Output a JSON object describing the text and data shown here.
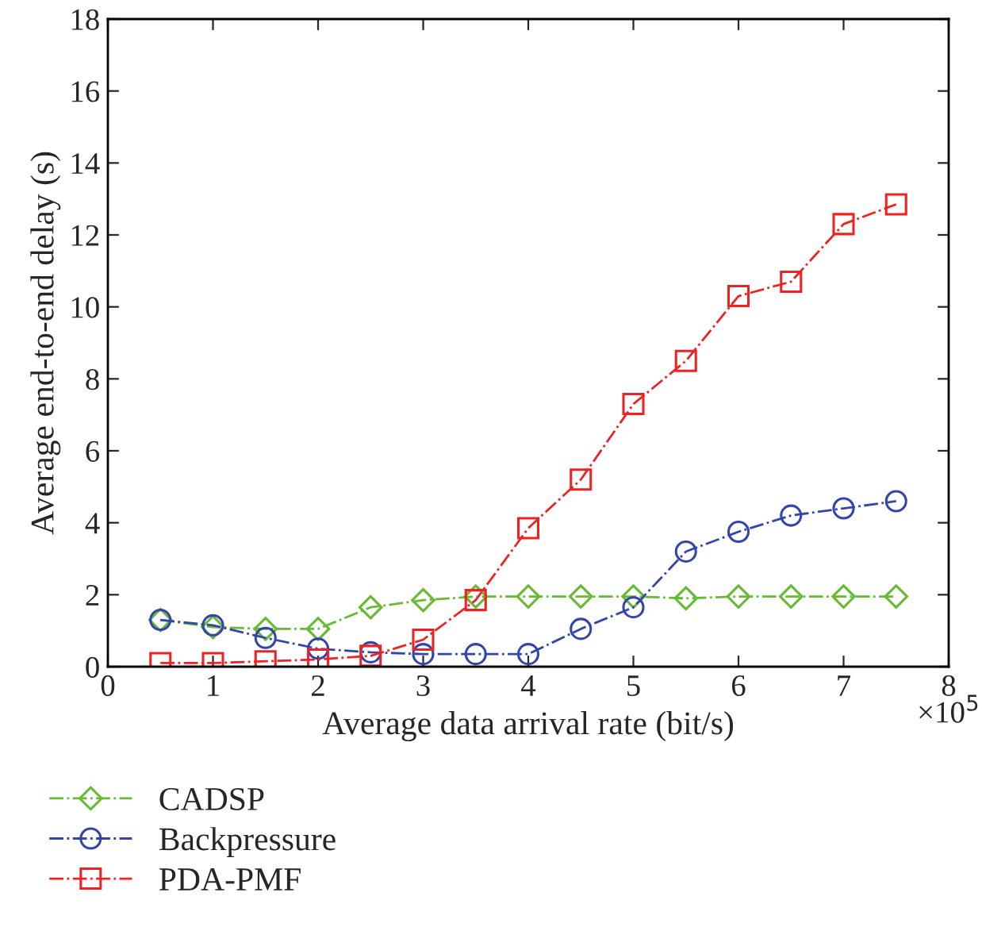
{
  "chart_data": {
    "type": "line",
    "xlabel": "Average data arrival rate (bit/s)",
    "ylabel": "Average end-to-end delay (s)",
    "x": [
      0.5,
      1,
      1.5,
      2,
      2.5,
      3,
      3.5,
      4,
      4.5,
      5,
      5.5,
      6,
      6.5,
      7,
      7.5
    ],
    "series": [
      {
        "name": "CADSP",
        "color": "#66bb33",
        "marker": "diamond",
        "values": [
          1.3,
          1.1,
          1.05,
          1.05,
          1.65,
          1.85,
          1.95,
          1.95,
          1.95,
          1.95,
          1.9,
          1.95,
          1.95,
          1.95,
          1.95
        ]
      },
      {
        "name": "Backpressure",
        "color": "#3344aa",
        "marker": "circle",
        "values": [
          1.3,
          1.15,
          0.8,
          0.5,
          0.4,
          0.35,
          0.35,
          0.35,
          1.05,
          1.65,
          3.2,
          3.75,
          4.2,
          4.4,
          4.6
        ]
      },
      {
        "name": "PDA-PMF",
        "color": "#ee2222",
        "marker": "square",
        "values": [
          0.1,
          0.1,
          0.15,
          0.2,
          0.3,
          0.75,
          1.85,
          3.85,
          5.2,
          7.3,
          8.5,
          10.3,
          10.7,
          12.3,
          12.85
        ]
      }
    ],
    "line_style": "dashdot",
    "xlim": [
      0,
      8
    ],
    "xticks": [
      0,
      1,
      2,
      3,
      4,
      5,
      6,
      7,
      8
    ],
    "ylim": [
      0,
      18
    ],
    "yticks": [
      0,
      2,
      4,
      6,
      8,
      10,
      12,
      14,
      16,
      18
    ],
    "annotations": [
      "×10$^{5}$"
    ],
    "grid": false,
    "legend": "bottom left"
  }
}
